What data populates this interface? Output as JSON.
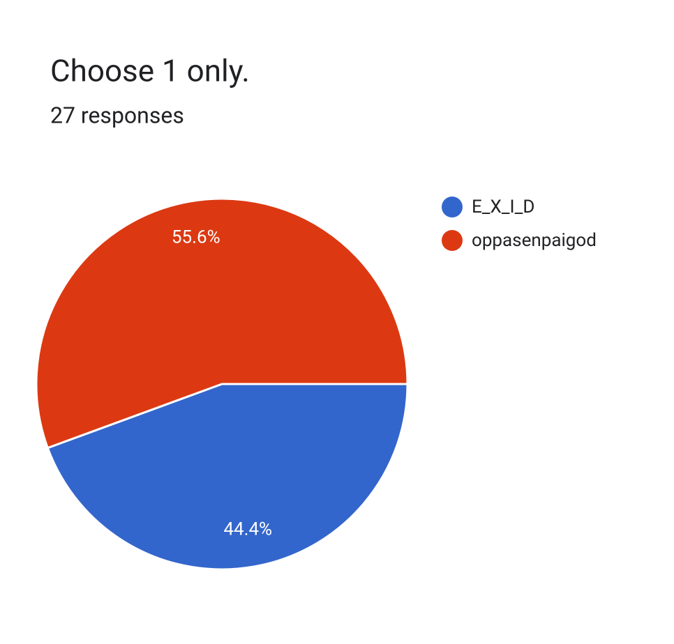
{
  "chart_data": {
    "type": "pie",
    "title": "Choose 1 only.",
    "subtitle": "27 responses",
    "categories": [
      "E_X_I_D",
      "oppasenpaigod"
    ],
    "values": [
      44.4,
      55.6
    ],
    "value_labels": [
      "44.4%",
      "55.6%"
    ],
    "colors": [
      "#3366cc",
      "#dc3912"
    ],
    "legend": "right"
  }
}
